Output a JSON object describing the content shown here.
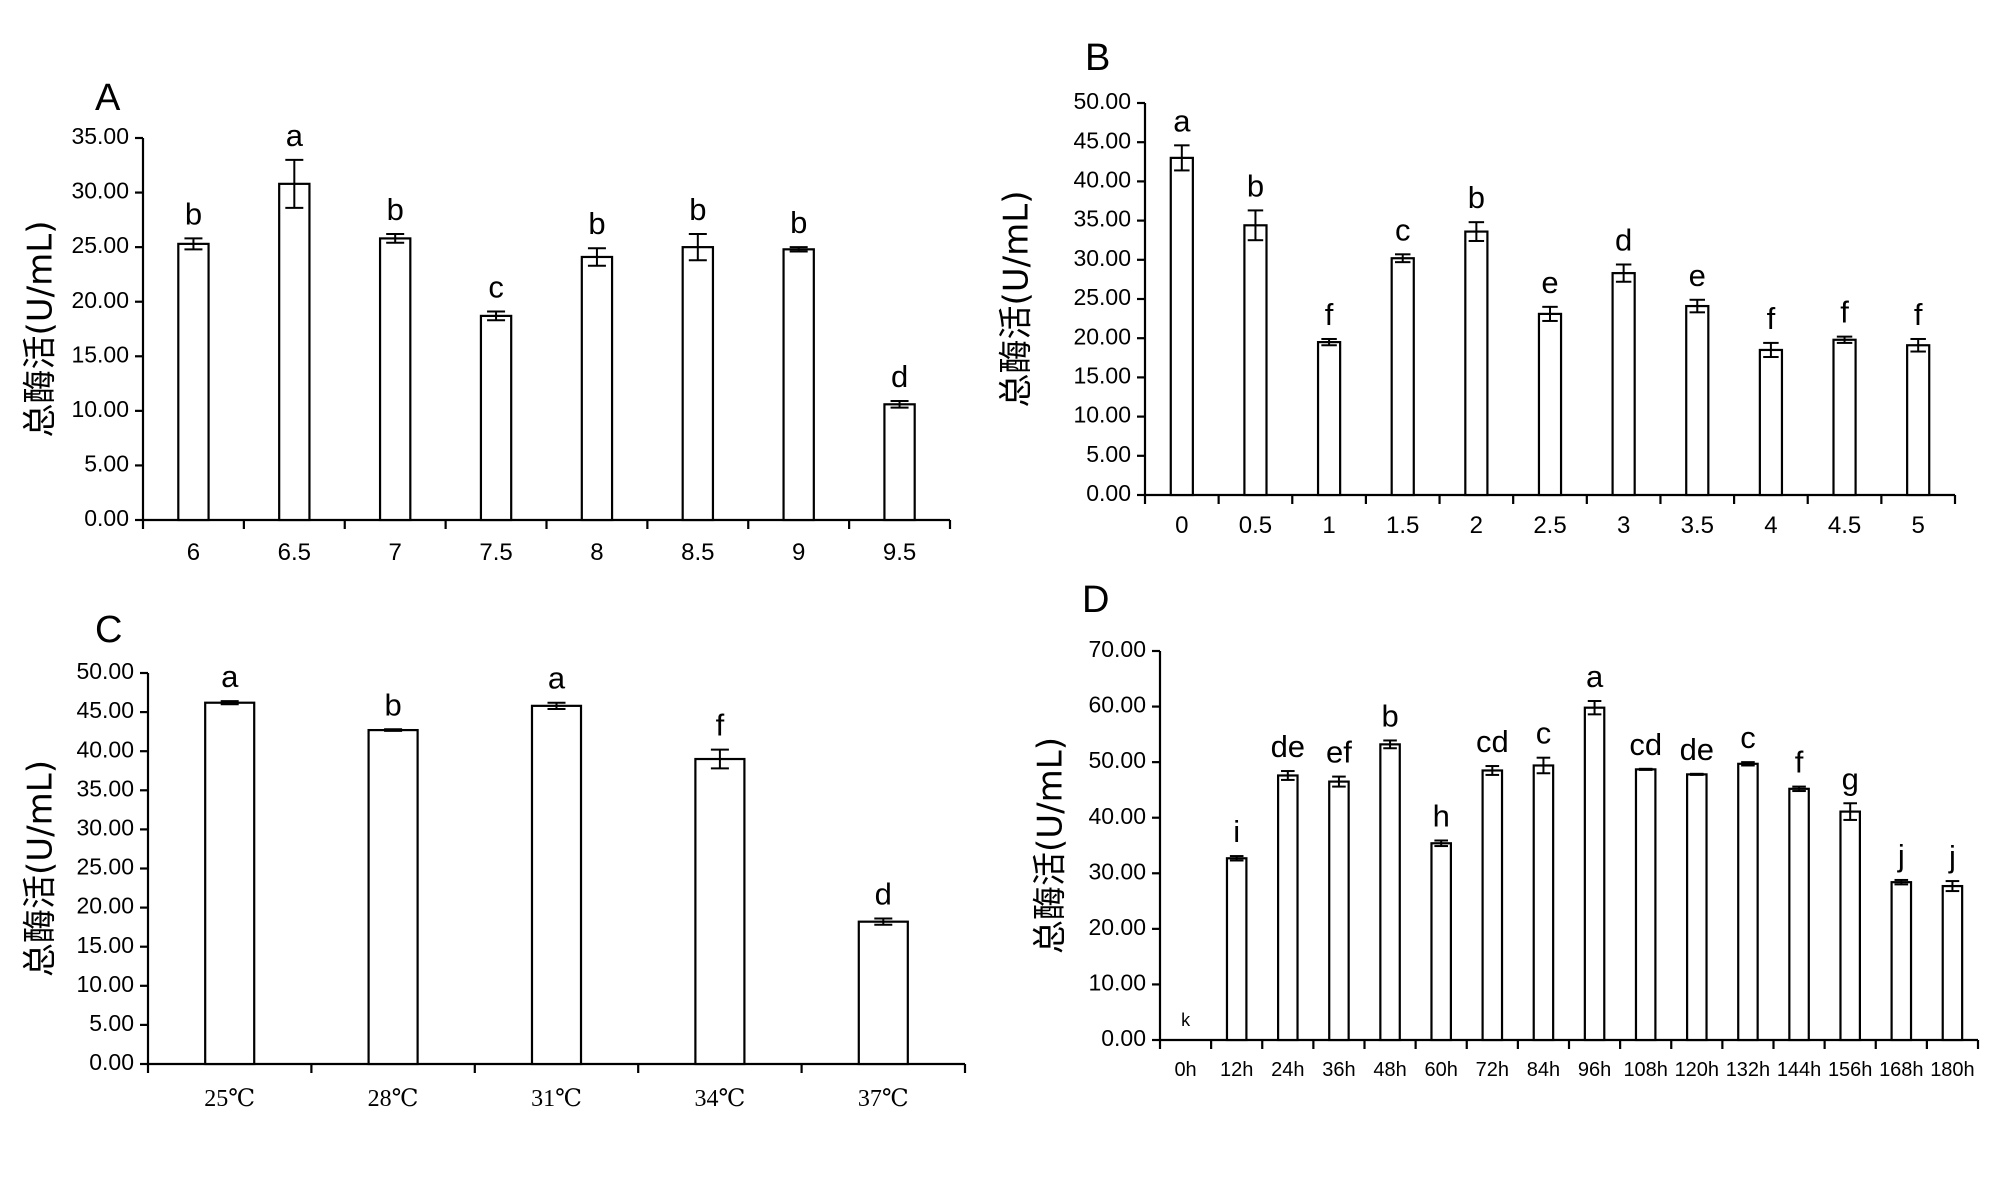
{
  "chart_data": [
    {
      "panel": "A",
      "type": "bar",
      "ylabel": "总酶活(U/mL)",
      "ylim": [
        0,
        35
      ],
      "yticks": [
        "0.00",
        "5.00",
        "10.00",
        "15.00",
        "20.00",
        "25.00",
        "30.00",
        "35.00"
      ],
      "categories": [
        "6",
        "6.5",
        "7",
        "7.5",
        "8",
        "8.5",
        "9",
        "9.5"
      ],
      "values": [
        25.3,
        30.8,
        25.8,
        18.7,
        24.1,
        25.0,
        24.8,
        10.6
      ],
      "errors": [
        0.5,
        2.2,
        0.4,
        0.4,
        0.8,
        1.2,
        0.2,
        0.3
      ],
      "letters": [
        "b",
        "a",
        "b",
        "c",
        "b",
        "b",
        "b",
        "d"
      ]
    },
    {
      "panel": "B",
      "type": "bar",
      "ylabel": "总酶活(U/mL)",
      "ylim": [
        0,
        50
      ],
      "yticks": [
        "0.00",
        "5.00",
        "10.00",
        "15.00",
        "20.00",
        "25.00",
        "30.00",
        "35.00",
        "40.00",
        "45.00",
        "50.00"
      ],
      "categories": [
        "0",
        "0.5",
        "1",
        "1.5",
        "2",
        "2.5",
        "3",
        "3.5",
        "4",
        "4.5",
        "5"
      ],
      "values": [
        43.0,
        34.4,
        19.5,
        30.2,
        33.6,
        23.1,
        28.3,
        24.1,
        18.5,
        19.8,
        19.1
      ],
      "errors": [
        1.6,
        1.9,
        0.4,
        0.5,
        1.2,
        0.9,
        1.1,
        0.8,
        0.9,
        0.4,
        0.8
      ],
      "letters": [
        "a",
        "b",
        "f",
        "c",
        "b",
        "e",
        "d",
        "e",
        "f",
        "f",
        "f"
      ]
    },
    {
      "panel": "C",
      "type": "bar",
      "ylabel": "总酶活(U/mL)",
      "ylim": [
        0,
        50
      ],
      "yticks": [
        "0.00",
        "5.00",
        "10.00",
        "15.00",
        "20.00",
        "25.00",
        "30.00",
        "35.00",
        "40.00",
        "45.00",
        "50.00"
      ],
      "categories": [
        "25℃",
        "28℃",
        "31℃",
        "34℃",
        "37℃"
      ],
      "values": [
        46.2,
        42.7,
        45.8,
        39.0,
        18.2
      ],
      "errors": [
        0.2,
        0.1,
        0.4,
        1.2,
        0.4
      ],
      "letters": [
        "a",
        "b",
        "a",
        "f",
        "d"
      ]
    },
    {
      "panel": "D",
      "type": "bar",
      "ylabel": "总酶活(U/mL)",
      "ylim": [
        0,
        70
      ],
      "yticks": [
        "0.00",
        "10.00",
        "20.00",
        "30.00",
        "40.00",
        "50.00",
        "60.00",
        "70.00"
      ],
      "categories": [
        "0h",
        "12h",
        "24h",
        "36h",
        "48h",
        "60h",
        "72h",
        "84h",
        "96h",
        "108h",
        "120h",
        "132h",
        "144h",
        "156h",
        "168h",
        "180h"
      ],
      "values": [
        0,
        32.7,
        47.6,
        46.5,
        53.2,
        35.4,
        48.5,
        49.4,
        59.8,
        48.7,
        47.8,
        49.7,
        45.2,
        41.1,
        28.4,
        27.7
      ],
      "errors": [
        0,
        0.4,
        0.8,
        0.9,
        0.7,
        0.5,
        0.8,
        1.4,
        1.2,
        0.1,
        0.1,
        0.3,
        0.4,
        1.5,
        0.4,
        0.9
      ],
      "letters": [
        "k",
        "i",
        "de",
        "ef",
        "b",
        "h",
        "cd",
        "c",
        "a",
        "cd",
        "de",
        "c",
        "f",
        "g",
        "j",
        "j"
      ]
    }
  ]
}
